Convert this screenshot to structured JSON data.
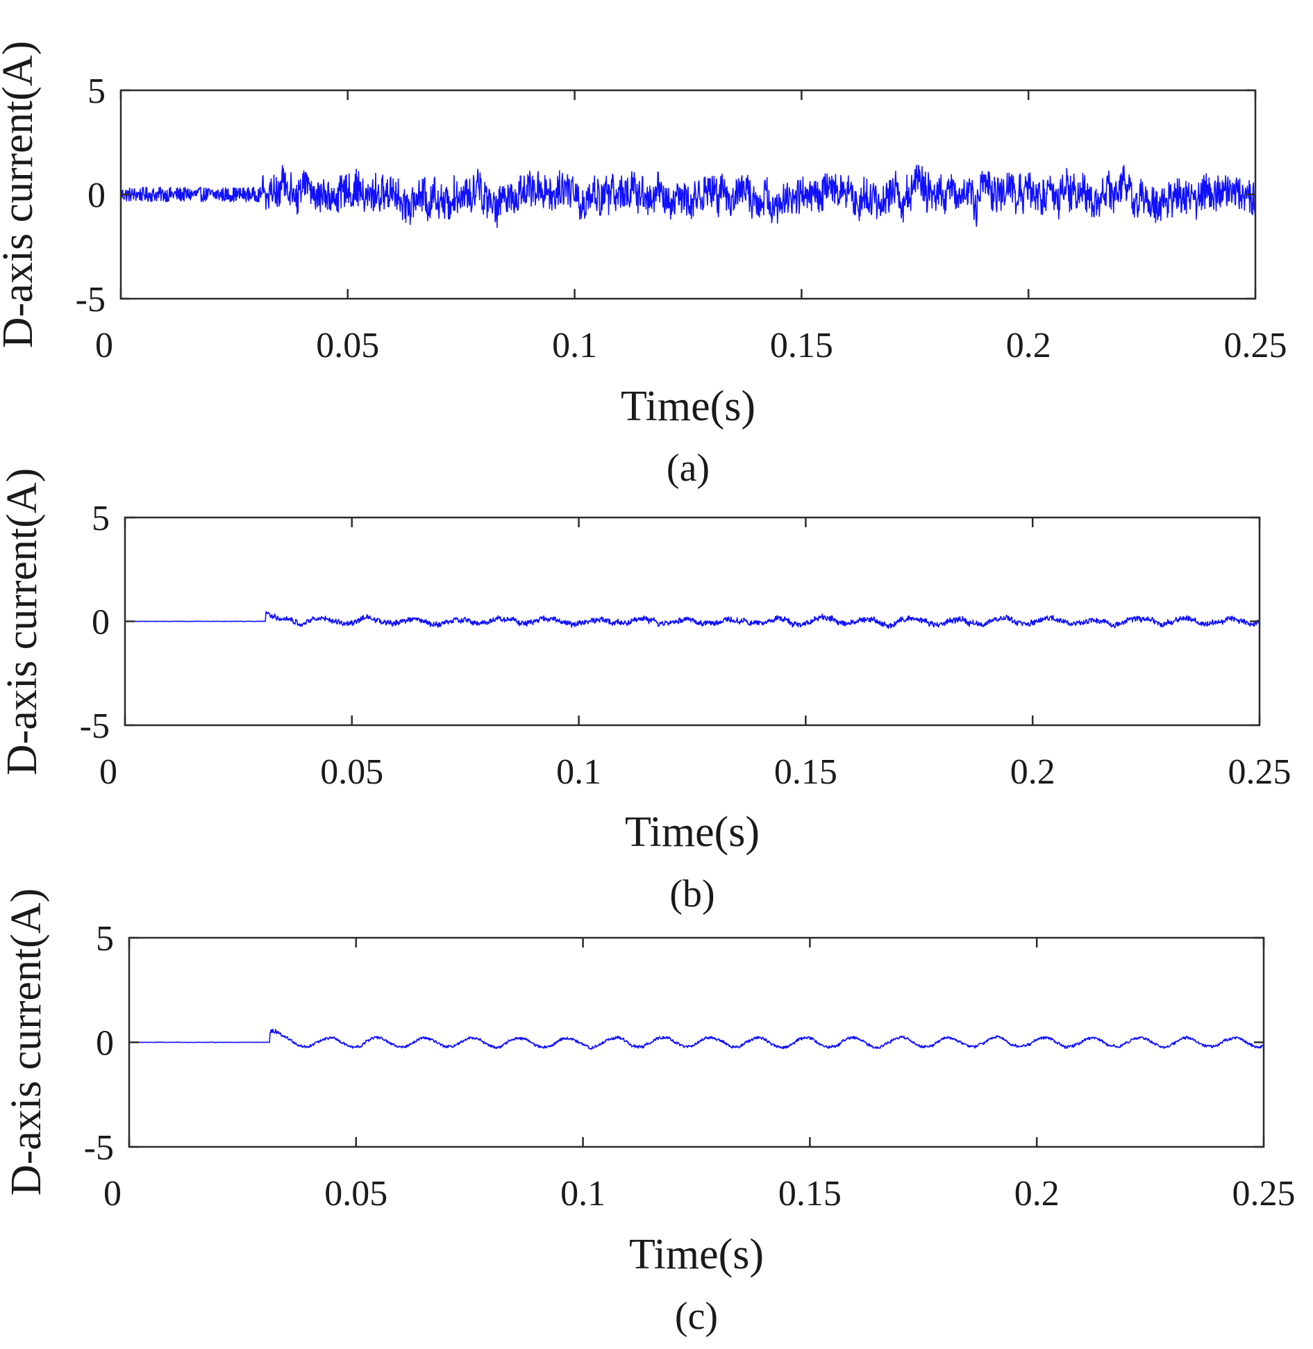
{
  "chart_data": [
    {
      "type": "line",
      "panel": "a",
      "caption": "(a)",
      "xlabel": "Time(s)",
      "ylabel": "D-axis current(A)",
      "xlim": [
        0,
        0.25
      ],
      "ylim": [
        -5,
        5
      ],
      "xticks": [
        "0",
        "0.05",
        "0.1",
        "0.15",
        "0.2",
        "0.25"
      ],
      "xtick_values": [
        0,
        0.05,
        0.1,
        0.15,
        0.2,
        0.25
      ],
      "yticks": [
        "-5",
        "0",
        "5"
      ],
      "ytick_values": [
        -5,
        0,
        5
      ],
      "grid": false,
      "series": [
        {
          "name": "D-axis current",
          "color": "#1010ff",
          "description_values": {
            "startup_end_time": 0.031,
            "startup_noise_amplitude": 0.35,
            "steady_noise_amplitude": 0.8,
            "ripple_amplitude": 0.1,
            "ripple_period": 0.02,
            "max": 1.4,
            "min": -1.8,
            "mean": 0
          }
        }
      ]
    },
    {
      "type": "line",
      "panel": "b",
      "caption": "(b)",
      "xlabel": "Time(s)",
      "ylabel": "D-axis current(A)",
      "xlim": [
        0,
        0.25
      ],
      "ylim": [
        -5,
        5
      ],
      "xticks": [
        "0",
        "0.05",
        "0.1",
        "0.15",
        "0.2",
        "0.25"
      ],
      "xtick_values": [
        0,
        0.05,
        0.1,
        0.15,
        0.2,
        0.25
      ],
      "yticks": [
        "-5",
        "0",
        "5"
      ],
      "ytick_values": [
        -5,
        0,
        5
      ],
      "grid": false,
      "series": [
        {
          "name": "D-axis current",
          "color": "#1010ff",
          "description_values": {
            "startup_end_time": 0.031,
            "startup_noise_amplitude": 0.01,
            "steady_noise_amplitude": 0.12,
            "ripple_amplitude": 0.12,
            "ripple_period": 0.01,
            "max": 0.6,
            "min": -0.4,
            "mean": 0
          }
        }
      ]
    },
    {
      "type": "line",
      "panel": "c",
      "caption": "(c)",
      "xlabel": "Time(s)",
      "ylabel": "D-axis current(A)",
      "xlim": [
        0,
        0.25
      ],
      "ylim": [
        -5,
        5
      ],
      "xticks": [
        "0",
        "0.05",
        "0.1",
        "0.15",
        "0.2",
        "0.25"
      ],
      "xtick_values": [
        0,
        0.05,
        0.1,
        0.15,
        0.2,
        0.25
      ],
      "yticks": [
        "-5",
        "0",
        "5"
      ],
      "ytick_values": [
        -5,
        0,
        5
      ],
      "grid": false,
      "series": [
        {
          "name": "D-axis current",
          "color": "#1010ff",
          "description_values": {
            "startup_end_time": 0.031,
            "startup_noise_amplitude": 0.01,
            "steady_noise_amplitude": 0.06,
            "ripple_amplitude": 0.22,
            "ripple_period": 0.0105,
            "max": 0.7,
            "min": -0.4,
            "mean": 0
          }
        }
      ]
    }
  ]
}
